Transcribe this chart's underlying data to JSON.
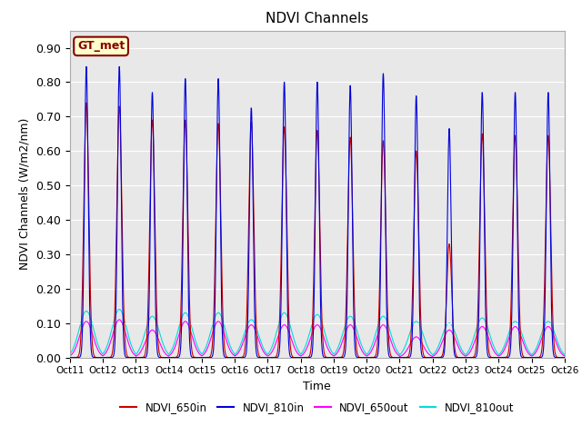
{
  "title": "NDVI Channels",
  "xlabel": "Time",
  "ylabel": "NDVI Channels (W/m2/nm)",
  "ylim": [
    0.0,
    0.95
  ],
  "yticks": [
    0.0,
    0.1,
    0.2,
    0.3,
    0.4,
    0.5,
    0.6,
    0.7,
    0.8,
    0.9
  ],
  "xtick_labels": [
    "Oct 11",
    "Oct 12",
    "Oct 13",
    "Oct 14",
    "Oct 15",
    "Oct 16",
    "Oct 17",
    "Oct 18",
    "Oct 19",
    "Oct 20",
    "Oct 21",
    "Oct 22",
    "Oct 23",
    "Oct 24",
    "Oct 25",
    "Oct 26"
  ],
  "color_650in": "#cc0000",
  "color_810in": "#0000dd",
  "color_650out": "#ff00ff",
  "color_810out": "#00dddd",
  "bg_color": "#e8e8e8",
  "gt_met_label": "GT_met",
  "gt_met_bg": "#ffffcc",
  "gt_met_border": "#880000",
  "legend_labels": [
    "NDVI_650in",
    "NDVI_810in",
    "NDVI_650out",
    "NDVI_810out"
  ],
  "peak_810in": [
    0.845,
    0.845,
    0.77,
    0.81,
    0.81,
    0.725,
    0.8,
    0.8,
    0.79,
    0.825,
    0.76,
    0.665,
    0.77,
    0.77,
    0.77
  ],
  "peak_650in": [
    0.74,
    0.73,
    0.69,
    0.69,
    0.68,
    0.685,
    0.67,
    0.66,
    0.64,
    0.63,
    0.6,
    0.33,
    0.65,
    0.645,
    0.645
  ],
  "peak_650out": [
    0.105,
    0.11,
    0.08,
    0.105,
    0.105,
    0.095,
    0.095,
    0.095,
    0.095,
    0.095,
    0.06,
    0.08,
    0.09,
    0.09,
    0.09
  ],
  "peak_810out": [
    0.135,
    0.14,
    0.12,
    0.13,
    0.13,
    0.11,
    0.13,
    0.125,
    0.12,
    0.12,
    0.105,
    0.1,
    0.115,
    0.105,
    0.105
  ],
  "days": 15,
  "pts_per_day": 200
}
